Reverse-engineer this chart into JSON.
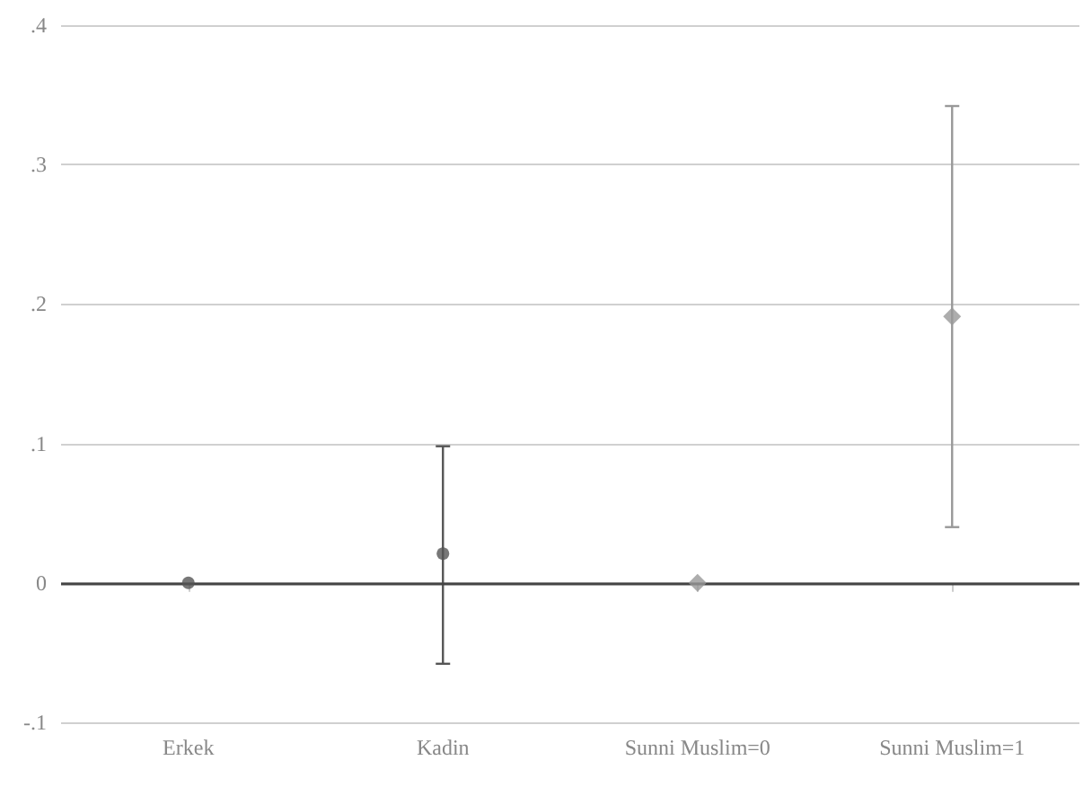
{
  "chart_data": {
    "type": "scatter",
    "categories": [
      "Erkek",
      "Kadin",
      "Sunni Muslim=0",
      "Sunni Muslim=1"
    ],
    "series": [
      {
        "color": "#555555",
        "marker": "circle",
        "values": [
          0,
          0.021,
          null,
          null
        ],
        "errors": [
          null,
          [
            -0.058,
            0.098
          ],
          null,
          null
        ]
      },
      {
        "color": "#999999",
        "marker": "diamond",
        "values": [
          null,
          null,
          0,
          0.191
        ],
        "errors": [
          null,
          null,
          null,
          [
            0.04,
            0.342
          ]
        ]
      }
    ],
    "ylim": [
      -0.1,
      0.4
    ],
    "yticks": [
      {
        "value": -0.1,
        "label": "-.1"
      },
      0,
      {
        "value": 0.1,
        "label": ".1"
      },
      {
        "value": 0.2,
        "label": ".2"
      },
      {
        "value": 0.3,
        "label": ".3"
      },
      {
        "value": 0.4,
        "label": ".4"
      }
    ],
    "grid": "y",
    "ref_lines": [
      {
        "axis": "y",
        "value": 0,
        "color": "#444444"
      }
    ]
  }
}
